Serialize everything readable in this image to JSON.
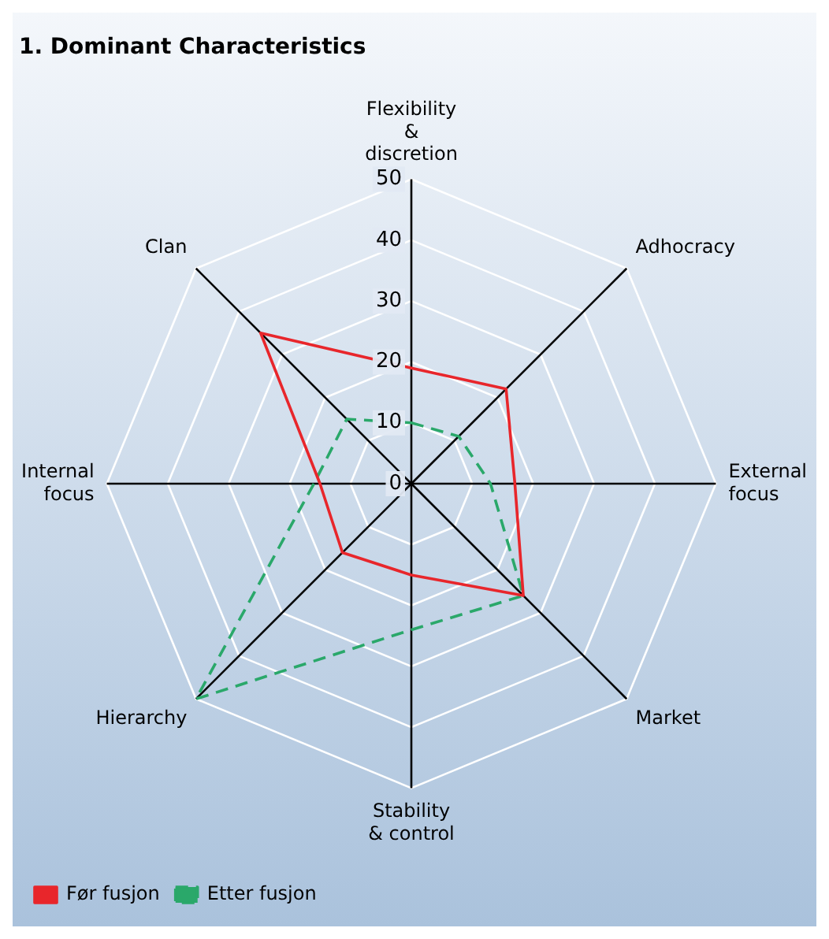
{
  "chart_data": {
    "type": "radar",
    "title": "1. Dominant Characteristics",
    "categories": [
      "Flexibility & discretion",
      "Adhocracy",
      "External focus",
      "Market",
      "Stability & control",
      "Hierarchy",
      "Internal focus",
      "Clan"
    ],
    "series": [
      {
        "name": "Før fusjon",
        "color": "#e8262b",
        "line_style": "solid",
        "values": [
          19,
          22,
          17,
          26,
          15,
          16,
          15,
          35
        ]
      },
      {
        "name": "Etter fusjon",
        "color": "#2aa86a",
        "line_style": "dashed",
        "values": [
          10,
          11,
          13,
          26,
          24,
          50,
          16,
          15
        ]
      }
    ],
    "ylim": [
      0,
      50
    ],
    "yticks": [
      0,
      10,
      20,
      30,
      40,
      50
    ],
    "grid": true,
    "legend": "bottom left",
    "marker": "none"
  }
}
